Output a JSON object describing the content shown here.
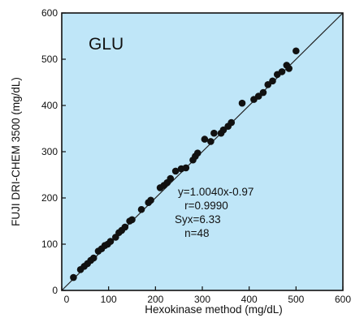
{
  "chart_data": {
    "type": "scatter",
    "panel_label": "GLU",
    "xlabel": "Hexokinase method (mg/dL)",
    "ylabel": "FUJI DRI-CHEM 3500 (mg/dL)",
    "xlim": [
      0,
      600
    ],
    "ylim": [
      0,
      600
    ],
    "x_ticks": [
      0,
      100,
      200,
      300,
      400,
      500,
      600
    ],
    "y_ticks": [
      0,
      100,
      200,
      300,
      400,
      500,
      600
    ],
    "x_tick_labels": [
      "0",
      "100",
      "200",
      "300",
      "400",
      "500",
      "600"
    ],
    "y_tick_labels": [
      "0",
      "100",
      "200",
      "300",
      "400",
      "500",
      "600"
    ],
    "grid": false,
    "background_color": "#bfe6f8",
    "marker_color": "#111111",
    "identity_line": true,
    "stats": [
      "y=1.0040x-0.97",
      "r=0.9990",
      "Syx=6.33",
      "n=48"
    ],
    "points": [
      [
        25,
        28
      ],
      [
        40,
        45
      ],
      [
        48,
        52
      ],
      [
        55,
        58
      ],
      [
        62,
        65
      ],
      [
        68,
        70
      ],
      [
        78,
        85
      ],
      [
        85,
        90
      ],
      [
        92,
        97
      ],
      [
        98,
        100
      ],
      [
        104,
        106
      ],
      [
        115,
        115
      ],
      [
        122,
        125
      ],
      [
        128,
        130
      ],
      [
        135,
        137
      ],
      [
        145,
        150
      ],
      [
        150,
        153
      ],
      [
        170,
        175
      ],
      [
        185,
        190
      ],
      [
        190,
        195
      ],
      [
        210,
        222
      ],
      [
        218,
        227
      ],
      [
        225,
        233
      ],
      [
        232,
        242
      ],
      [
        243,
        258
      ],
      [
        255,
        263
      ],
      [
        265,
        265
      ],
      [
        280,
        282
      ],
      [
        285,
        290
      ],
      [
        290,
        297
      ],
      [
        305,
        327
      ],
      [
        318,
        322
      ],
      [
        325,
        340
      ],
      [
        340,
        340
      ],
      [
        345,
        347
      ],
      [
        355,
        355
      ],
      [
        362,
        363
      ],
      [
        385,
        405
      ],
      [
        410,
        413
      ],
      [
        420,
        420
      ],
      [
        430,
        428
      ],
      [
        440,
        445
      ],
      [
        450,
        453
      ],
      [
        460,
        467
      ],
      [
        470,
        473
      ],
      [
        480,
        487
      ],
      [
        485,
        480
      ],
      [
        500,
        518
      ]
    ]
  }
}
